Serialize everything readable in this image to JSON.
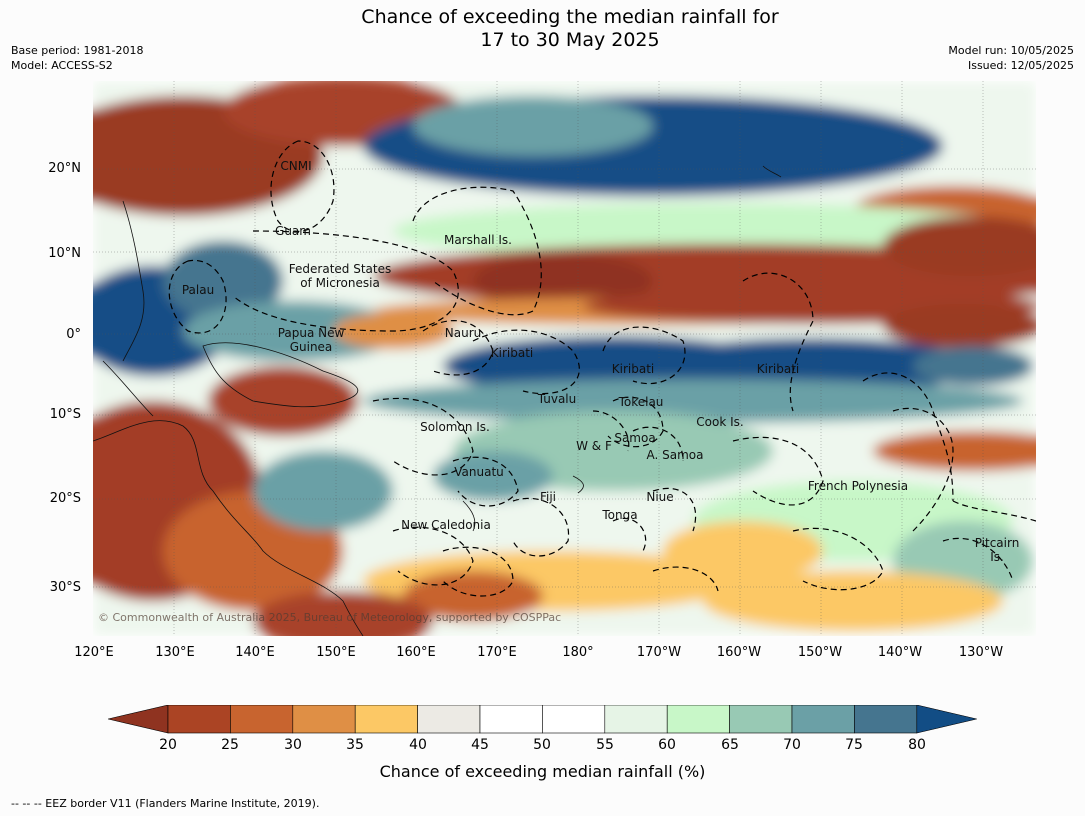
{
  "title": {
    "line1": "Chance of exceeding the median rainfall for",
    "line2": "17 to 30 May 2025"
  },
  "meta_left": {
    "base_period": "Base period: 1981-2018",
    "model": "Model: ACCESS-S2"
  },
  "meta_right": {
    "model_run": "Model run: 10/05/2025",
    "issued": "Issued: 12/05/2025"
  },
  "map": {
    "lat_ticks": [
      "20°N",
      "10°N",
      "0°",
      "10°S",
      "20°S",
      "30°S"
    ],
    "lon_ticks": [
      "120°E",
      "130°E",
      "140°E",
      "150°E",
      "160°E",
      "170°E",
      "180°",
      "170°W",
      "160°W",
      "150°W",
      "140°W",
      "130°W"
    ],
    "labels": {
      "cnmi": "CNMI",
      "guam": "Guam",
      "marshall": "Marshall Is.",
      "fsm": "Federated States\nof Micronesia",
      "palau": "Palau",
      "png": "Papua New\nGuinea",
      "nauru": "Nauru",
      "kiribati1": "Kiribati",
      "kiribati2": "Kiribati",
      "kiribati3": "Kiribati",
      "tuvalu": "Tuvalu",
      "tokelau": "Tokelau",
      "cook": "Cook Is.",
      "solomon": "Solomon Is.",
      "samoa": "Samoa",
      "wf": "W & F",
      "asamoa": "A. Samoa",
      "vanuatu": "Vanuatu",
      "fiji": "Fiji",
      "niue": "Niue",
      "fpoly": "French Polynesia",
      "tonga": "Tonga",
      "newcal": "New Caledonia",
      "pitcairn": "Pitcairn\nIs."
    },
    "copyright": "© Commonwealth of Australia 2025, Bureau of Meteorology, supported by COSPPac"
  },
  "colorbar": {
    "ticks": [
      "20",
      "25",
      "30",
      "35",
      "40",
      "45",
      "50",
      "55",
      "60",
      "65",
      "70",
      "75",
      "80"
    ],
    "colors": [
      "#8f3320",
      "#ab4424",
      "#c8642f",
      "#df8f45",
      "#fcc865",
      "#eceae4",
      "#ffffff",
      "#ffffff",
      "#e6f4e6",
      "#c8f7c8",
      "#98c9b4",
      "#6ba0a6",
      "#45758f",
      "#124d85"
    ],
    "label": "Chance of exceeding median rainfall (%)"
  },
  "footnote": "--  --  -- EEZ border V11 (Flanders Marine Institute, 2019)."
}
